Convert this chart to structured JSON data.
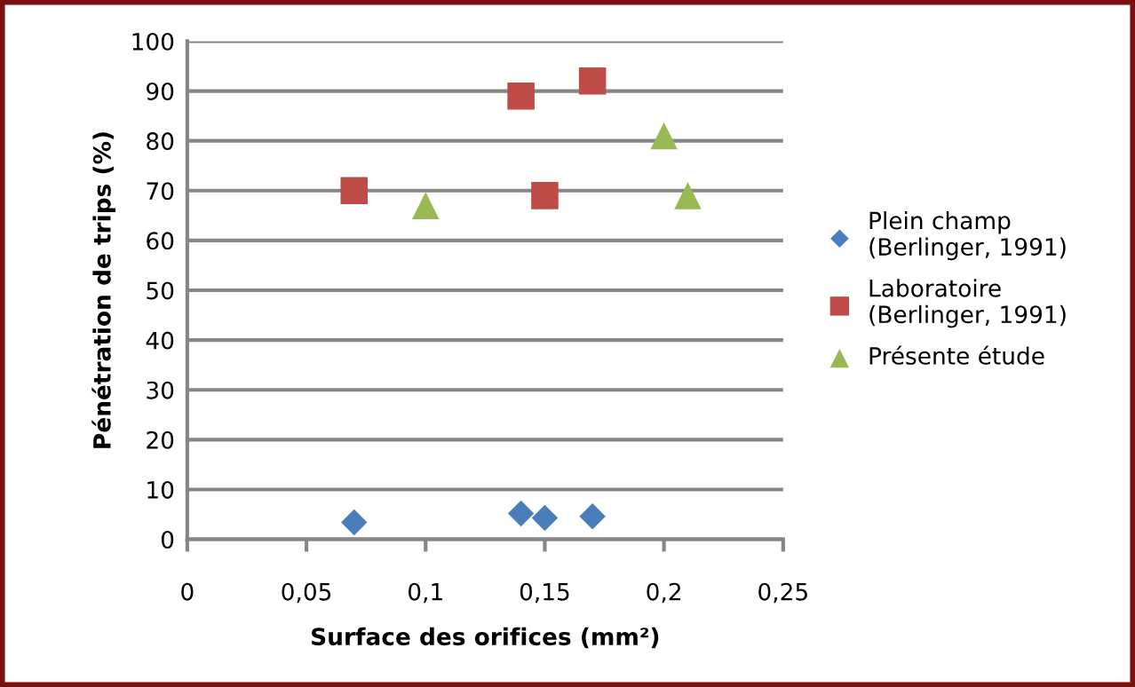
{
  "chart_data": {
    "type": "scatter",
    "xlabel": "Surface des orifices (mm²)",
    "ylabel": "Pénétration de trips (%)",
    "xlim": [
      0,
      0.25
    ],
    "xticks": [
      {
        "value": 0,
        "label": "0"
      },
      {
        "value": 0.05,
        "label": "0,05"
      },
      {
        "value": 0.1,
        "label": "0,1"
      },
      {
        "value": 0.15,
        "label": "0,15"
      },
      {
        "value": 0.2,
        "label": "0,2"
      },
      {
        "value": 0.25,
        "label": "0,25"
      }
    ],
    "ylim": [
      0,
      100
    ],
    "yticks": [
      0,
      10,
      20,
      30,
      40,
      50,
      60,
      70,
      80,
      90,
      100
    ],
    "grid": "y",
    "legend": "right",
    "series": [
      {
        "name": "Plein champ\n(Berlinger, 1991)",
        "color": "#4a7ebb",
        "marker": "diamond",
        "x": [
          0.07,
          0.14,
          0.15,
          0.17
        ],
        "values": [
          3.4,
          5.2,
          4.3,
          4.6
        ]
      },
      {
        "name": "Laboratoire\n(Berlinger, 1991)",
        "color": "#be4b48",
        "marker": "square",
        "x": [
          0.07,
          0.14,
          0.15,
          0.17
        ],
        "values": [
          70,
          89,
          69,
          92
        ]
      },
      {
        "name": "Présente étude",
        "color": "#98b954",
        "marker": "triangle",
        "x": [
          0.1,
          0.2,
          0.21
        ],
        "values": [
          67,
          81,
          69
        ]
      }
    ]
  }
}
